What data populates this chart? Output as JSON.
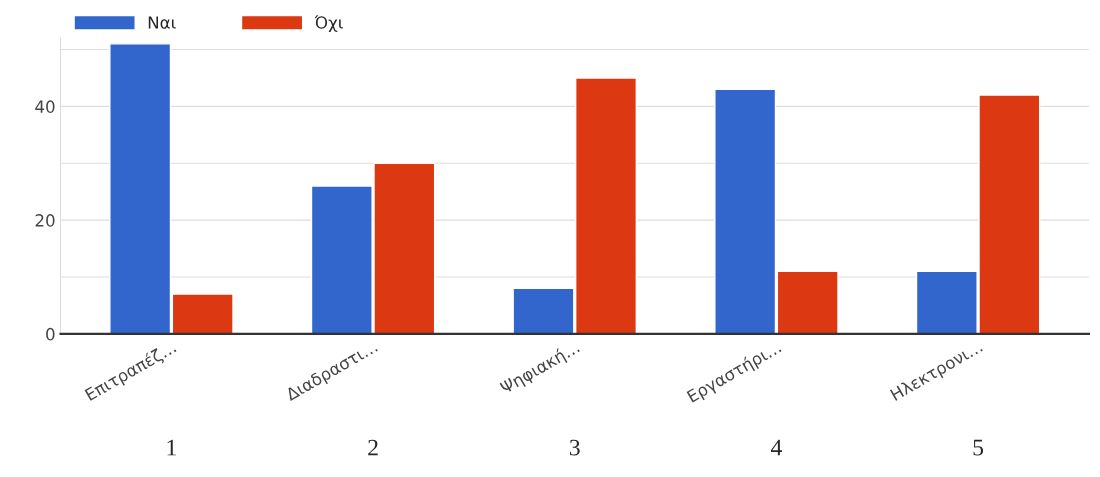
{
  "chart_data": {
    "type": "bar",
    "categories": [
      "Επιτραπέζ…",
      "Διαδραστι…",
      "Ψηφιακή…",
      "Εργαστήρι…",
      "Ηλεκτρονι…"
    ],
    "series": [
      {
        "name": "Ναι",
        "color": "#3366cc",
        "values": [
          51,
          26,
          8,
          43,
          11
        ]
      },
      {
        "name": "Όχι",
        "color": "#dc3912",
        "values": [
          7,
          30,
          45,
          11,
          42
        ]
      }
    ],
    "ylim": [
      0,
      52
    ],
    "yticks": [
      0,
      {
        "value": 10,
        "label": null
      },
      20,
      {
        "value": 30,
        "label": null
      },
      40,
      {
        "value": 50,
        "label": null
      }
    ],
    "grid": "y",
    "legend": "top left",
    "annotations": [
      "1",
      "2",
      "3",
      "4",
      "5"
    ]
  }
}
